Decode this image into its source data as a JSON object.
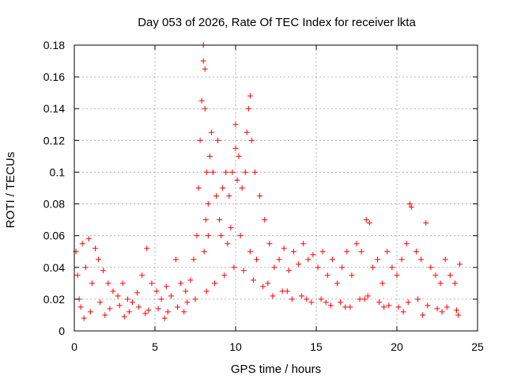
{
  "chart_data": {
    "type": "scatter",
    "title": "Day 053 of 2026, Rate Of TEC Index for receiver lkta",
    "xlabel": "GPS time / hours",
    "ylabel": "ROTI / TECUs",
    "xlim": [
      0,
      25
    ],
    "ylim": [
      0,
      0.18
    ],
    "xticks": [
      0,
      5,
      10,
      15,
      20,
      25
    ],
    "xtick_labels": [
      "0",
      "5",
      "10",
      "15",
      "20",
      "25"
    ],
    "yticks": [
      0,
      0.02,
      0.04,
      0.06,
      0.08,
      0.1,
      0.12,
      0.14,
      0.16,
      0.18
    ],
    "ytick_labels": [
      "0",
      "0.02",
      "0.04",
      "0.06",
      "0.08",
      "0.1",
      "0.12",
      "0.14",
      "0.16",
      "0.18"
    ],
    "grid": true,
    "marker": "plus",
    "color": "#ff0000",
    "series": [
      {
        "x": [
          0.1,
          0.2,
          0.3,
          0.5,
          0.7,
          0.9,
          1.1,
          1.3,
          1.5,
          1.8,
          2.1,
          2.4,
          2.7,
          3.0,
          3.3,
          3.6,
          3.9,
          4.2,
          4.5,
          4.8,
          5.1,
          5.4,
          5.7,
          6.0,
          6.3,
          6.6,
          6.9,
          7.2,
          7.4,
          7.6,
          7.7,
          7.8,
          7.9,
          8.0,
          8.0,
          8.1,
          8.1,
          8.2,
          8.3,
          8.4,
          8.5,
          8.6,
          8.8,
          8.9,
          9.0,
          9.2,
          9.4,
          9.6,
          9.8,
          10.0,
          10.0,
          10.1,
          10.2,
          10.4,
          10.6,
          10.7,
          10.8,
          10.9,
          11.0,
          11.2,
          11.5,
          11.8,
          12.1,
          12.4,
          12.7,
          13.0,
          13.3,
          13.6,
          13.9,
          14.2,
          14.5,
          14.8,
          15.1,
          15.4,
          15.7,
          16.0,
          16.3,
          16.6,
          16.9,
          17.2,
          17.5,
          17.8,
          18.1,
          18.3,
          18.5,
          18.8,
          19.1,
          19.4,
          19.7,
          20.0,
          20.3,
          20.6,
          20.8,
          20.9,
          21.2,
          21.5,
          21.8,
          22.1,
          22.4,
          22.7,
          23.0,
          23.3,
          23.6,
          23.9,
          0.4,
          1.0,
          1.6,
          2.2,
          2.8,
          3.4,
          4.0,
          4.6,
          5.2,
          5.8,
          6.4,
          7.0,
          7.5,
          8.2,
          8.7,
          9.3,
          9.9,
          10.5,
          11.1,
          11.7,
          12.3,
          12.9,
          13.5,
          14.1,
          14.7,
          15.3,
          15.9,
          16.5,
          17.1,
          17.7,
          18.2,
          18.9,
          19.5,
          20.1,
          20.7,
          21.3,
          21.9,
          22.5,
          23.1,
          23.7,
          0.6,
          1.9,
          3.1,
          4.4,
          5.6,
          6.8,
          8.05,
          8.15,
          8.3,
          9.1,
          9.5,
          9.7,
          10.3,
          10.9,
          11.3,
          12.0,
          13.2,
          14.4,
          15.6,
          16.8,
          18.0,
          19.2,
          20.4,
          21.6,
          22.8,
          23.8
        ],
        "y": [
          0.05,
          0.035,
          0.02,
          0.055,
          0.04,
          0.058,
          0.03,
          0.052,
          0.045,
          0.038,
          0.03,
          0.025,
          0.022,
          0.03,
          0.02,
          0.018,
          0.024,
          0.035,
          0.052,
          0.03,
          0.025,
          0.02,
          0.028,
          0.022,
          0.045,
          0.03,
          0.025,
          0.032,
          0.045,
          0.06,
          0.09,
          0.12,
          0.145,
          0.17,
          0.18,
          0.165,
          0.14,
          0.1,
          0.08,
          0.11,
          0.125,
          0.1,
          0.085,
          0.12,
          0.07,
          0.09,
          0.1,
          0.085,
          0.1,
          0.13,
          0.115,
          0.095,
          0.11,
          0.09,
          0.1,
          0.125,
          0.14,
          0.148,
          0.12,
          0.1,
          0.085,
          0.07,
          0.055,
          0.04,
          0.045,
          0.052,
          0.038,
          0.05,
          0.042,
          0.055,
          0.045,
          0.048,
          0.04,
          0.05,
          0.035,
          0.045,
          0.03,
          0.04,
          0.05,
          0.035,
          0.055,
          0.05,
          0.07,
          0.068,
          0.04,
          0.045,
          0.03,
          0.05,
          0.04,
          0.035,
          0.045,
          0.055,
          0.08,
          0.078,
          0.05,
          0.045,
          0.068,
          0.04,
          0.035,
          0.03,
          0.045,
          0.035,
          0.03,
          0.042,
          0.015,
          0.012,
          0.018,
          0.014,
          0.016,
          0.012,
          0.015,
          0.013,
          0.014,
          0.012,
          0.015,
          0.018,
          0.02,
          0.025,
          0.03,
          0.035,
          0.04,
          0.038,
          0.032,
          0.028,
          0.022,
          0.025,
          0.02,
          0.022,
          0.018,
          0.02,
          0.016,
          0.018,
          0.015,
          0.02,
          0.022,
          0.018,
          0.016,
          0.015,
          0.018,
          0.02,
          0.016,
          0.014,
          0.015,
          0.013,
          0.008,
          0.01,
          0.009,
          0.011,
          0.008,
          0.012,
          0.05,
          0.07,
          0.06,
          0.06,
          0.055,
          0.065,
          0.06,
          0.05,
          0.045,
          0.03,
          0.025,
          0.02,
          0.018,
          0.015,
          0.02,
          0.015,
          0.012,
          0.01,
          0.012,
          0.01
        ]
      }
    ]
  }
}
